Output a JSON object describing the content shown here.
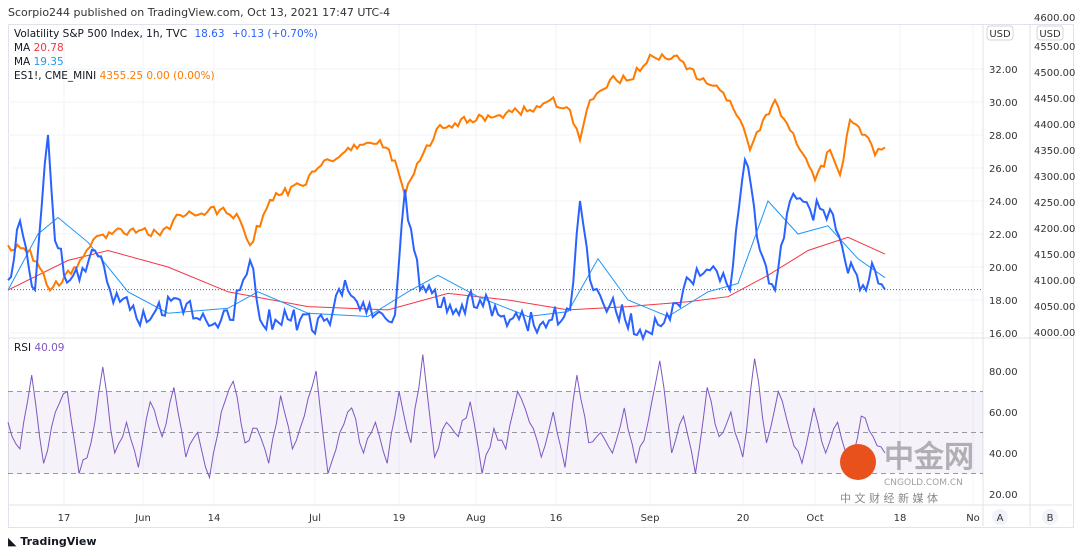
{
  "header": {
    "published": "Scorpio244 published on TradingView.com, Oct 13, 2021 17:47 UTC-4"
  },
  "legend": {
    "main": "Volatility S&P 500 Index, 1h, TVC",
    "main_value": "18.63",
    "main_change": "+0.13 (+0.70%)",
    "ma1_label": "MA",
    "ma1_value": "20.78",
    "ma2_label": "MA",
    "ma2_value": "19.35",
    "es_label": "ES1!, CME_MINI",
    "es_value": "4355.25",
    "es_change": "0.00 (0.00%)",
    "rsi_label": "RSI",
    "rsi_value": "40.09"
  },
  "footer": {
    "brand": "TradingView",
    "watermark": "中金网",
    "watermark_sub": "CNGOLD.COM.CN",
    "watermark_tag": "中 文 财 经 新 媒 体"
  },
  "colors": {
    "vix": "#2962ff",
    "ma_red": "#f23645",
    "ma_blue": "#2196f3",
    "es": "#ff7a00",
    "rsi": "#7e57c2"
  },
  "chart_data": {
    "type": "line",
    "x_ticks": [
      "17",
      "Jun",
      "14",
      "Jul",
      "19",
      "Aug",
      "16",
      "Sep",
      "20",
      "Oct",
      "18",
      "No"
    ],
    "x_tick_pos": [
      56,
      135,
      206,
      307,
      391,
      468,
      548,
      642,
      735,
      807,
      892,
      965
    ],
    "scale_buttons": [
      "A",
      "B"
    ],
    "currency_left": "USD",
    "currency_right": "USD",
    "vix_axis": {
      "ticks": [
        "16.00",
        "18.00",
        "20.00",
        "22.00",
        "24.00",
        "26.00",
        "28.00",
        "30.00",
        "32.00"
      ],
      "ylim": [
        16,
        33
      ]
    },
    "es_axis": {
      "ticks": [
        "4000.00",
        "4050.00",
        "4100.00",
        "4150.00",
        "4200.00",
        "4250.00",
        "4300.00",
        "4350.00",
        "4400.00",
        "4450.00",
        "4500.00",
        "4550.00",
        "4600.00"
      ],
      "ylim": [
        4000,
        4575
      ]
    },
    "rsi_axis": {
      "ticks": [
        "20.00",
        "40.00",
        "60.00",
        "80.00"
      ],
      "band": [
        30,
        70
      ],
      "mid": 50
    },
    "bars": 877,
    "vix": [
      [
        0,
        19.2
      ],
      [
        12,
        22.8
      ],
      [
        27,
        18.6
      ],
      [
        40,
        28
      ],
      [
        47,
        21.6
      ],
      [
        62,
        19.2
      ],
      [
        87,
        21
      ],
      [
        102,
        18.6
      ],
      [
        122,
        17.4
      ],
      [
        142,
        16.8
      ],
      [
        172,
        18
      ],
      [
        192,
        16.8
      ],
      [
        222,
        16.8
      ],
      [
        242,
        20.4
      ],
      [
        252,
        16.8
      ],
      [
        292,
        16.8
      ],
      [
        322,
        16.5
      ],
      [
        337,
        19.2
      ],
      [
        352,
        17.4
      ],
      [
        387,
        17.1
      ],
      [
        397,
        24.7
      ],
      [
        412,
        18.6
      ],
      [
        442,
        17.7
      ],
      [
        472,
        18
      ],
      [
        502,
        16.8
      ],
      [
        532,
        16.5
      ],
      [
        562,
        17.4
      ],
      [
        572,
        24
      ],
      [
        582,
        19.2
      ],
      [
        602,
        17.7
      ],
      [
        632,
        16.2
      ],
      [
        662,
        16.8
      ],
      [
        682,
        19.2
      ],
      [
        702,
        19.8
      ],
      [
        722,
        18.6
      ],
      [
        737,
        26.5
      ],
      [
        752,
        21
      ],
      [
        767,
        18.6
      ],
      [
        782,
        24
      ],
      [
        802,
        23.5
      ],
      [
        822,
        23.5
      ],
      [
        837,
        20.4
      ],
      [
        852,
        18.6
      ],
      [
        867,
        19.8
      ],
      [
        877,
        18.63
      ]
    ],
    "ma_red": [
      [
        0,
        18.6
      ],
      [
        60,
        20.4
      ],
      [
        100,
        21
      ],
      [
        160,
        20
      ],
      [
        220,
        18.5
      ],
      [
        300,
        17.6
      ],
      [
        380,
        17.4
      ],
      [
        440,
        18.4
      ],
      [
        500,
        18
      ],
      [
        560,
        17.4
      ],
      [
        620,
        17.6
      ],
      [
        680,
        17.9
      ],
      [
        720,
        18.2
      ],
      [
        760,
        19.5
      ],
      [
        800,
        21
      ],
      [
        840,
        21.8
      ],
      [
        877,
        20.78
      ]
    ],
    "ma_blue": [
      [
        0,
        18.6
      ],
      [
        30,
        22
      ],
      [
        50,
        23
      ],
      [
        80,
        21.5
      ],
      [
        120,
        18.5
      ],
      [
        160,
        17.2
      ],
      [
        220,
        17.5
      ],
      [
        250,
        18.5
      ],
      [
        300,
        17.2
      ],
      [
        360,
        17
      ],
      [
        400,
        18.5
      ],
      [
        430,
        19.5
      ],
      [
        470,
        18.2
      ],
      [
        520,
        17
      ],
      [
        560,
        17.3
      ],
      [
        590,
        20.5
      ],
      [
        620,
        18
      ],
      [
        660,
        17
      ],
      [
        700,
        18.5
      ],
      [
        730,
        19
      ],
      [
        760,
        24
      ],
      [
        790,
        22
      ],
      [
        820,
        22.5
      ],
      [
        850,
        20.5
      ],
      [
        877,
        19.35
      ]
    ],
    "es": [
      [
        0,
        4167
      ],
      [
        22,
        4158
      ],
      [
        42,
        4080
      ],
      [
        72,
        4138
      ],
      [
        92,
        4186
      ],
      [
        122,
        4196
      ],
      [
        152,
        4186
      ],
      [
        172,
        4225
      ],
      [
        212,
        4235
      ],
      [
        232,
        4215
      ],
      [
        242,
        4167
      ],
      [
        262,
        4254
      ],
      [
        292,
        4283
      ],
      [
        322,
        4330
      ],
      [
        352,
        4360
      ],
      [
        372,
        4369
      ],
      [
        387,
        4330
      ],
      [
        397,
        4263
      ],
      [
        412,
        4330
      ],
      [
        432,
        4398
      ],
      [
        462,
        4408
      ],
      [
        492,
        4417
      ],
      [
        522,
        4427
      ],
      [
        542,
        4446
      ],
      [
        562,
        4427
      ],
      [
        572,
        4369
      ],
      [
        582,
        4446
      ],
      [
        602,
        4485
      ],
      [
        622,
        4485
      ],
      [
        642,
        4533
      ],
      [
        672,
        4523
      ],
      [
        692,
        4485
      ],
      [
        712,
        4465
      ],
      [
        732,
        4408
      ],
      [
        742,
        4350
      ],
      [
        752,
        4388
      ],
      [
        767,
        4446
      ],
      [
        782,
        4388
      ],
      [
        792,
        4350
      ],
      [
        807,
        4292
      ],
      [
        822,
        4350
      ],
      [
        832,
        4302
      ],
      [
        842,
        4408
      ],
      [
        857,
        4379
      ],
      [
        867,
        4340
      ],
      [
        877,
        4355
      ]
    ],
    "rsi": [
      55,
      42,
      78,
      35,
      60,
      70,
      30,
      45,
      82,
      40,
      55,
      33,
      65,
      48,
      72,
      38,
      50,
      28,
      60,
      75,
      45,
      52,
      35,
      68,
      42,
      58,
      80,
      30,
      50,
      62,
      40,
      55,
      35,
      70,
      45,
      88,
      38,
      55,
      48,
      65,
      30,
      52,
      42,
      70,
      55,
      38,
      60,
      33,
      78,
      45,
      50,
      40,
      62,
      35,
      55,
      85,
      40,
      58,
      30,
      72,
      48,
      60,
      38,
      86,
      45,
      70,
      50,
      35,
      62,
      40,
      55,
      30,
      58,
      48,
      40
    ]
  }
}
